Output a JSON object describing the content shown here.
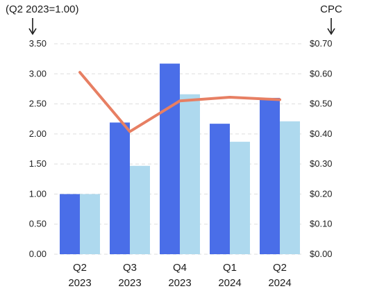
{
  "chart_data": {
    "type": "bar",
    "left_axis_title": "(Q2 2023=1.00)",
    "right_axis_title": "CPC",
    "categories": [
      [
        "Q2",
        "2023"
      ],
      [
        "Q3",
        "2023"
      ],
      [
        "Q4",
        "2023"
      ],
      [
        "Q1",
        "2024"
      ],
      [
        "Q2",
        "2024"
      ]
    ],
    "left_ticks": [
      "0.00",
      "0.50",
      "1.00",
      "1.50",
      "2.00",
      "2.50",
      "3.00",
      "3.50"
    ],
    "right_ticks": [
      "$0.00",
      "$0.10",
      "$0.20",
      "$0.30",
      "$0.40",
      "$0.50",
      "$0.60",
      "$0.70"
    ],
    "ylim_left": [
      0,
      3.5
    ],
    "ylim_right": [
      0,
      0.7
    ],
    "series": [
      {
        "axis": "left",
        "kind": "bar",
        "color": "#4a6ee8",
        "values": [
          1.0,
          2.19,
          3.17,
          2.17,
          2.6
        ]
      },
      {
        "axis": "left",
        "kind": "bar",
        "color": "#aed9ee",
        "values": [
          1.0,
          1.47,
          2.66,
          1.87,
          2.21
        ]
      },
      {
        "axis": "right",
        "kind": "line",
        "color": "#e77f63",
        "values": [
          0.605,
          0.408,
          0.51,
          0.522,
          0.514
        ]
      }
    ],
    "grid": true,
    "grid_color": "#dddddd"
  }
}
